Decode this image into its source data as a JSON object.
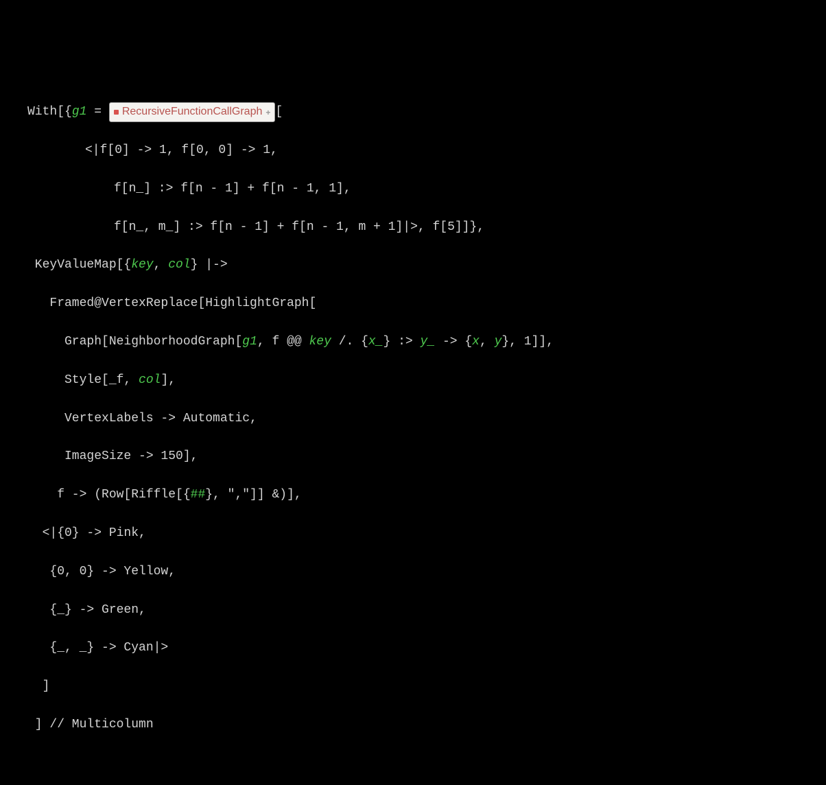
{
  "code": {
    "l1": {
      "with": "With",
      "ob": "[{",
      "var": "g1",
      "eq": " = ",
      "resource": "RecursiveFunctionCallGraph",
      "ob2": "["
    },
    "l2": {
      "txt": "<|f[0] -> 1, f[0, 0] -> 1,"
    },
    "l3": {
      "txt": "f[n_] :> f[n - 1] + f[n - 1, 1],"
    },
    "l4": {
      "txt": "f[n_, m_] :> f[n - 1] + f[n - 1, m + 1]|>, f[5]]},"
    },
    "l5": {
      "kv": " KeyValueMap[{",
      "key": "key",
      "c1": ", ",
      "col": "col",
      "c2": "} |->"
    },
    "l6": {
      "txt": "   Framed@VertexReplace[HighlightGraph["
    },
    "l7": {
      "p1": "     Graph[NeighborhoodGraph[",
      "g1": "g1",
      "p2": ", f @@ ",
      "key": "key",
      "p3": " /. {",
      "x": "x_",
      "p4": "} :> ",
      "y": "y_",
      "p5": " -> {",
      "xy1": "x",
      "c": ", ",
      "xy2": "y",
      "p6": "}, 1]],"
    },
    "l8": {
      "p1": "     Style[_f, ",
      "col": "col",
      "p2": "],"
    },
    "l9": {
      "txt": "     VertexLabels -> Automatic,"
    },
    "l10": {
      "txt": "     ImageSize -> 150],"
    },
    "l11": {
      "p1": "    f -> (Row[Riffle[{",
      "slot": "##",
      "p2": "}, \",\"]] &)],"
    },
    "l12": {
      "txt": "  <|{0} -> Pink,"
    },
    "l13": {
      "txt": "   {0, 0} -> Yellow,"
    },
    "l14": {
      "txt": "   {_} -> Green,"
    },
    "l15": {
      "txt": "   {_, _} -> Cyan|>"
    },
    "l16": {
      "txt": "  ]"
    },
    "l17": {
      "txt": " ] // Multicolumn"
    }
  },
  "colors": {
    "fn": "#d4d4d4",
    "var": "#4ec94e",
    "resource_bg": "#f5f3f0",
    "resource_fg": "#b85450",
    "bg": "#000000"
  }
}
